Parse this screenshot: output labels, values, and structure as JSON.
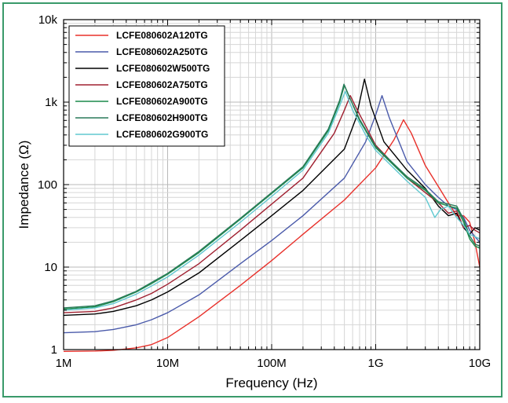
{
  "chart_data": {
    "type": "line",
    "xlabel": "Frequency (Hz)",
    "ylabel": "Impedance (Ω)",
    "xscale": "log",
    "yscale": "log",
    "xlim": [
      1000000,
      10000000000
    ],
    "ylim": [
      1,
      10000
    ],
    "x_ticks": [
      {
        "value": 1000000,
        "label": "1M"
      },
      {
        "value": 10000000,
        "label": "10M"
      },
      {
        "value": 100000000,
        "label": "100M"
      },
      {
        "value": 1000000000,
        "label": "1G"
      },
      {
        "value": 10000000000,
        "label": "10G"
      }
    ],
    "y_ticks": [
      {
        "value": 1,
        "label": "1"
      },
      {
        "value": 10,
        "label": "10"
      },
      {
        "value": 100,
        "label": "100"
      },
      {
        "value": 1000,
        "label": "1k"
      },
      {
        "value": 10000,
        "label": "10k"
      }
    ],
    "grid": true,
    "legend_position": "top-left",
    "series": [
      {
        "name": "LCFE080602A120TG",
        "color": "#e8302a",
        "points": [
          [
            1000000,
            0.95
          ],
          [
            2000000,
            0.96
          ],
          [
            3000000,
            0.98
          ],
          [
            5000000,
            1.05
          ],
          [
            7000000,
            1.15
          ],
          [
            10000000,
            1.4
          ],
          [
            20000000,
            2.5
          ],
          [
            50000000,
            6
          ],
          [
            100000000,
            12
          ],
          [
            200000000,
            25
          ],
          [
            500000000,
            65
          ],
          [
            1000000000,
            160
          ],
          [
            1500000000,
            350
          ],
          [
            1850000000,
            610
          ],
          [
            2200000000,
            420
          ],
          [
            3000000000,
            170
          ],
          [
            4000000000,
            95
          ],
          [
            5000000000,
            60
          ],
          [
            6000000000,
            42
          ],
          [
            7000000000,
            42
          ],
          [
            8000000000,
            35
          ],
          [
            9000000000,
            20
          ],
          [
            10000000000,
            10
          ]
        ]
      },
      {
        "name": "LCFE080602A250TG",
        "color": "#4a5aaa",
        "points": [
          [
            1000000,
            1.6
          ],
          [
            2000000,
            1.65
          ],
          [
            3000000,
            1.75
          ],
          [
            5000000,
            2.0
          ],
          [
            7000000,
            2.3
          ],
          [
            10000000,
            2.8
          ],
          [
            20000000,
            4.6
          ],
          [
            50000000,
            11
          ],
          [
            100000000,
            21
          ],
          [
            200000000,
            42
          ],
          [
            500000000,
            120
          ],
          [
            800000000,
            330
          ],
          [
            1000000000,
            700
          ],
          [
            1150000000,
            1200
          ],
          [
            1350000000,
            650
          ],
          [
            2000000000,
            190
          ],
          [
            3000000000,
            100
          ],
          [
            4000000000,
            70
          ],
          [
            5000000000,
            55
          ],
          [
            6000000000,
            50
          ],
          [
            7000000000,
            40
          ],
          [
            8000000000,
            28
          ],
          [
            10000000000,
            20
          ]
        ]
      },
      {
        "name": "LCFE080602W500TG",
        "color": "#000000",
        "points": [
          [
            1000000,
            2.6
          ],
          [
            2000000,
            2.7
          ],
          [
            3000000,
            2.9
          ],
          [
            5000000,
            3.4
          ],
          [
            7000000,
            4.0
          ],
          [
            10000000,
            5.0
          ],
          [
            20000000,
            8.5
          ],
          [
            50000000,
            21
          ],
          [
            100000000,
            42
          ],
          [
            200000000,
            85
          ],
          [
            500000000,
            270
          ],
          [
            650000000,
            650
          ],
          [
            780000000,
            1900
          ],
          [
            900000000,
            900
          ],
          [
            1200000000,
            330
          ],
          [
            2000000000,
            150
          ],
          [
            3000000000,
            90
          ],
          [
            4000000000,
            55
          ],
          [
            5000000000,
            42
          ],
          [
            6000000000,
            45
          ],
          [
            7000000000,
            30
          ],
          [
            8000000000,
            25
          ],
          [
            9000000000,
            30
          ],
          [
            10000000000,
            28
          ]
        ]
      },
      {
        "name": "LCFE080602A750TG",
        "color": "#a02030",
        "points": [
          [
            1000000,
            2.8
          ],
          [
            2000000,
            2.9
          ],
          [
            3000000,
            3.2
          ],
          [
            5000000,
            4.0
          ],
          [
            7000000,
            4.8
          ],
          [
            10000000,
            6.2
          ],
          [
            20000000,
            11
          ],
          [
            50000000,
            28
          ],
          [
            100000000,
            58
          ],
          [
            200000000,
            120
          ],
          [
            400000000,
            420
          ],
          [
            500000000,
            800
          ],
          [
            570000000,
            1200
          ],
          [
            650000000,
            850
          ],
          [
            1000000000,
            300
          ],
          [
            2000000000,
            120
          ],
          [
            3000000000,
            80
          ],
          [
            4000000000,
            60
          ],
          [
            5000000000,
            45
          ],
          [
            6000000000,
            48
          ],
          [
            7000000000,
            30
          ],
          [
            8000000000,
            32
          ],
          [
            9000000000,
            28
          ],
          [
            10000000000,
            26
          ]
        ]
      },
      {
        "name": "LCFE080602A900TG",
        "color": "#1a8a4a",
        "points": [
          [
            1000000,
            3.1
          ],
          [
            2000000,
            3.3
          ],
          [
            3000000,
            3.8
          ],
          [
            5000000,
            5.0
          ],
          [
            7000000,
            6.3
          ],
          [
            10000000,
            8.2
          ],
          [
            20000000,
            15
          ],
          [
            50000000,
            38
          ],
          [
            100000000,
            78
          ],
          [
            200000000,
            160
          ],
          [
            350000000,
            450
          ],
          [
            450000000,
            1000
          ],
          [
            500000000,
            1600
          ],
          [
            560000000,
            1150
          ],
          [
            700000000,
            600
          ],
          [
            1000000000,
            280
          ],
          [
            2000000000,
            120
          ],
          [
            3000000000,
            85
          ],
          [
            4000000000,
            60
          ],
          [
            5000000000,
            55
          ],
          [
            6000000000,
            52
          ],
          [
            7000000000,
            35
          ],
          [
            8000000000,
            22
          ],
          [
            9000000000,
            18
          ],
          [
            10000000000,
            17
          ]
        ]
      },
      {
        "name": "LCFE080602H900TG",
        "color": "#2a7a5a",
        "points": [
          [
            1000000,
            3.2
          ],
          [
            2000000,
            3.4
          ],
          [
            3000000,
            3.9
          ],
          [
            5000000,
            5.1
          ],
          [
            7000000,
            6.5
          ],
          [
            10000000,
            8.4
          ],
          [
            20000000,
            15.5
          ],
          [
            50000000,
            39
          ],
          [
            100000000,
            80
          ],
          [
            200000000,
            165
          ],
          [
            350000000,
            470
          ],
          [
            450000000,
            1050
          ],
          [
            495000000,
            1650
          ],
          [
            550000000,
            1200
          ],
          [
            700000000,
            620
          ],
          [
            1000000000,
            290
          ],
          [
            2000000000,
            125
          ],
          [
            3000000000,
            88
          ],
          [
            4000000000,
            62
          ],
          [
            5000000000,
            58
          ],
          [
            6000000000,
            55
          ],
          [
            7000000000,
            38
          ],
          [
            8000000000,
            24
          ],
          [
            9000000000,
            19
          ],
          [
            10000000000,
            18
          ]
        ]
      },
      {
        "name": "LCFE080602G900TG",
        "color": "#60c8d0",
        "points": [
          [
            1000000,
            3.0
          ],
          [
            2000000,
            3.2
          ],
          [
            3000000,
            3.6
          ],
          [
            5000000,
            4.7
          ],
          [
            7000000,
            5.9
          ],
          [
            10000000,
            7.6
          ],
          [
            20000000,
            14
          ],
          [
            50000000,
            35
          ],
          [
            100000000,
            72
          ],
          [
            200000000,
            150
          ],
          [
            350000000,
            420
          ],
          [
            450000000,
            900
          ],
          [
            510000000,
            1350
          ],
          [
            600000000,
            800
          ],
          [
            800000000,
            400
          ],
          [
            1000000000,
            260
          ],
          [
            2000000000,
            110
          ],
          [
            3000000000,
            70
          ],
          [
            3700000000,
            40
          ],
          [
            4200000000,
            50
          ],
          [
            5000000000,
            55
          ],
          [
            6000000000,
            40
          ],
          [
            7000000000,
            32
          ],
          [
            8000000000,
            25
          ],
          [
            10000000000,
            22
          ]
        ]
      }
    ]
  }
}
